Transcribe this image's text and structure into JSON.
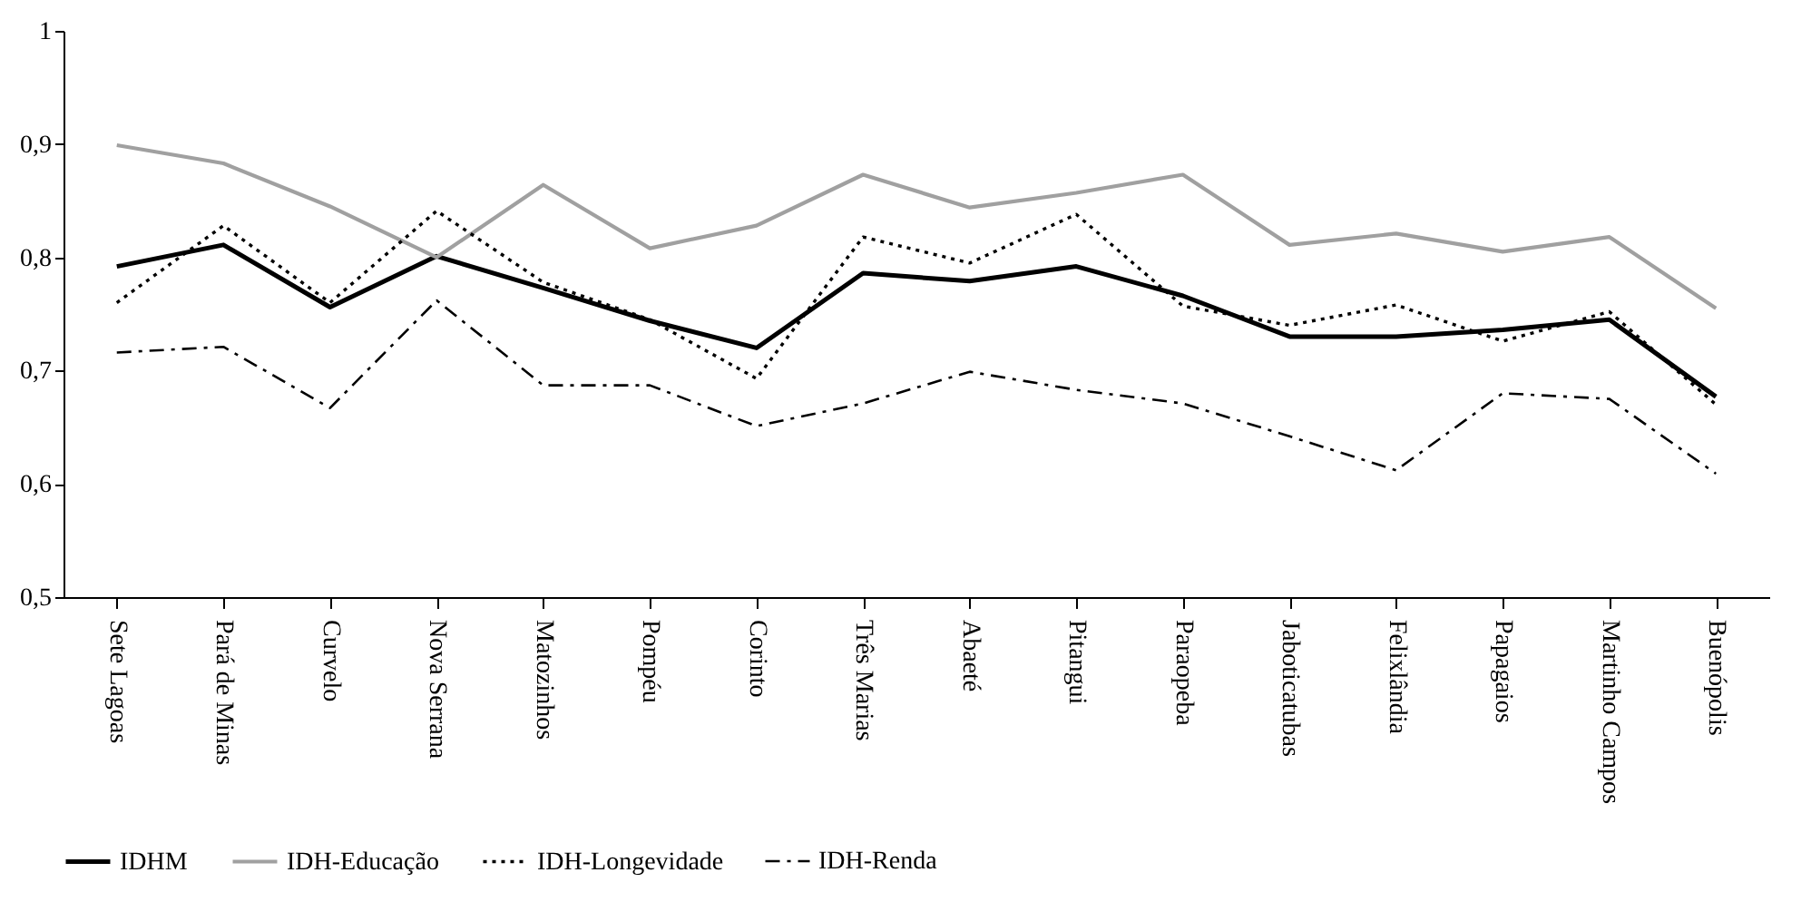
{
  "chart_data": {
    "type": "line",
    "categories": [
      "Sete Lagoas",
      "Pará de Minas",
      "Curvelo",
      "Nova Serrana",
      "Matozinhos",
      "Pompéu",
      "Corinto",
      "Três Marias",
      "Abaeté",
      "Pitangui",
      "Paraopeba",
      "Jaboticatubas",
      "Felixlândia",
      "Papagaios",
      "Martinho Campos",
      "Buenópolis"
    ],
    "series": [
      {
        "name": "IDHM",
        "color": "#000000",
        "line_style": "solid",
        "values": [
          0.792,
          0.811,
          0.756,
          0.801,
          0.773,
          0.744,
          0.72,
          0.786,
          0.779,
          0.792,
          0.766,
          0.73,
          0.73,
          0.736,
          0.745,
          0.677
        ]
      },
      {
        "name": "IDH-Educação",
        "color": "#a0a0a0",
        "line_style": "solid",
        "values": [
          0.899,
          0.883,
          0.845,
          0.8,
          0.864,
          0.808,
          0.828,
          0.873,
          0.844,
          0.857,
          0.873,
          0.811,
          0.821,
          0.805,
          0.818,
          0.755
        ]
      },
      {
        "name": "IDH-Longevidade",
        "color": "#000000",
        "line_style": "dotted",
        "values": [
          0.76,
          0.828,
          0.76,
          0.841,
          0.778,
          0.745,
          0.693,
          0.818,
          0.795,
          0.838,
          0.757,
          0.74,
          0.758,
          0.726,
          0.752,
          0.67
        ]
      },
      {
        "name": "IDH-Renda",
        "color": "#000000",
        "line_style": "dashdot",
        "values": [
          0.716,
          0.721,
          0.667,
          0.762,
          0.687,
          0.687,
          0.651,
          0.671,
          0.699,
          0.683,
          0.671,
          0.642,
          0.612,
          0.68,
          0.675,
          0.609
        ]
      }
    ],
    "ylim": [
      0.5,
      1
    ],
    "yticks": [
      {
        "value": 0.5,
        "label": "0,5"
      },
      {
        "value": 0.6,
        "label": "0,6"
      },
      {
        "value": 0.7,
        "label": "0,7"
      },
      {
        "value": 0.8,
        "label": "0,8"
      },
      {
        "value": 0.9,
        "label": "0,9"
      },
      {
        "value": 1,
        "label": "1"
      }
    ],
    "grid": false,
    "legend": "bottom",
    "marker": "none"
  }
}
